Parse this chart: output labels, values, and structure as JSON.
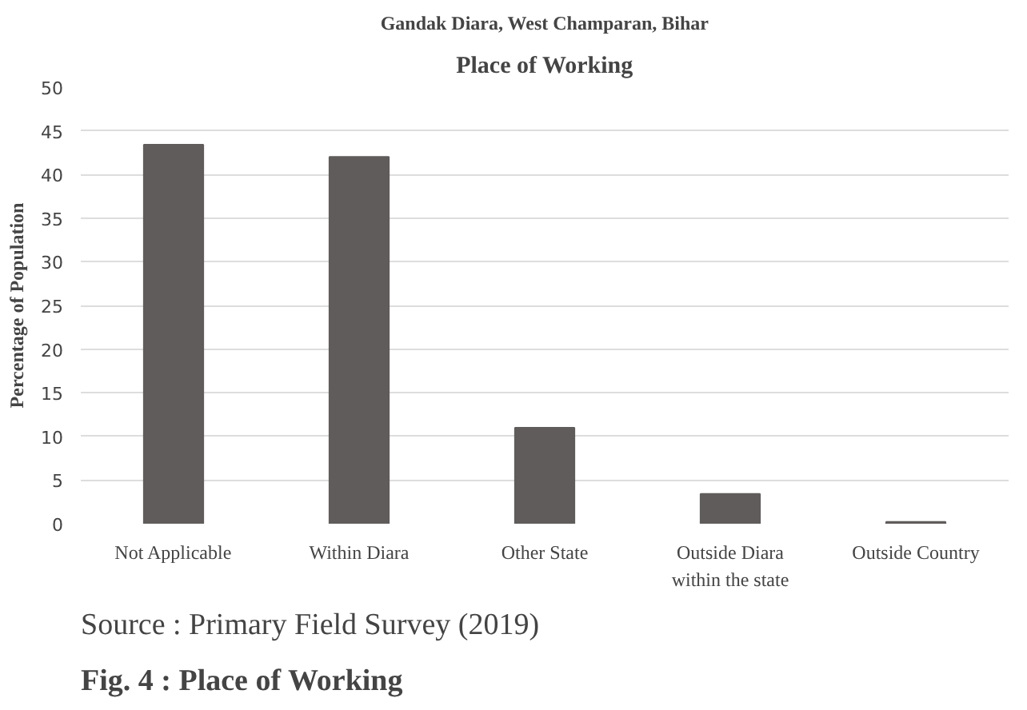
{
  "chart_data": {
    "type": "bar",
    "title": "Gandak Diara, West Champaran, Bihar",
    "subtitle": "Place of Working",
    "ylabel": "Percentage of Population",
    "categories": [
      "Not Applicable",
      "Within Diara",
      "Other State",
      "Outside Diara\nwithin the state",
      "Outside Country"
    ],
    "values": [
      43.4,
      42.0,
      11.0,
      3.4,
      0.2
    ],
    "color": "#605c5c",
    "ylim": [
      0,
      50
    ],
    "yticks": [
      0,
      5,
      10,
      15,
      20,
      25,
      30,
      35,
      40,
      45,
      50
    ],
    "grid": "y",
    "annotations": [
      "Source : Primary Field Survey (2019)",
      "Fig. 4 :   Place of Working"
    ]
  }
}
